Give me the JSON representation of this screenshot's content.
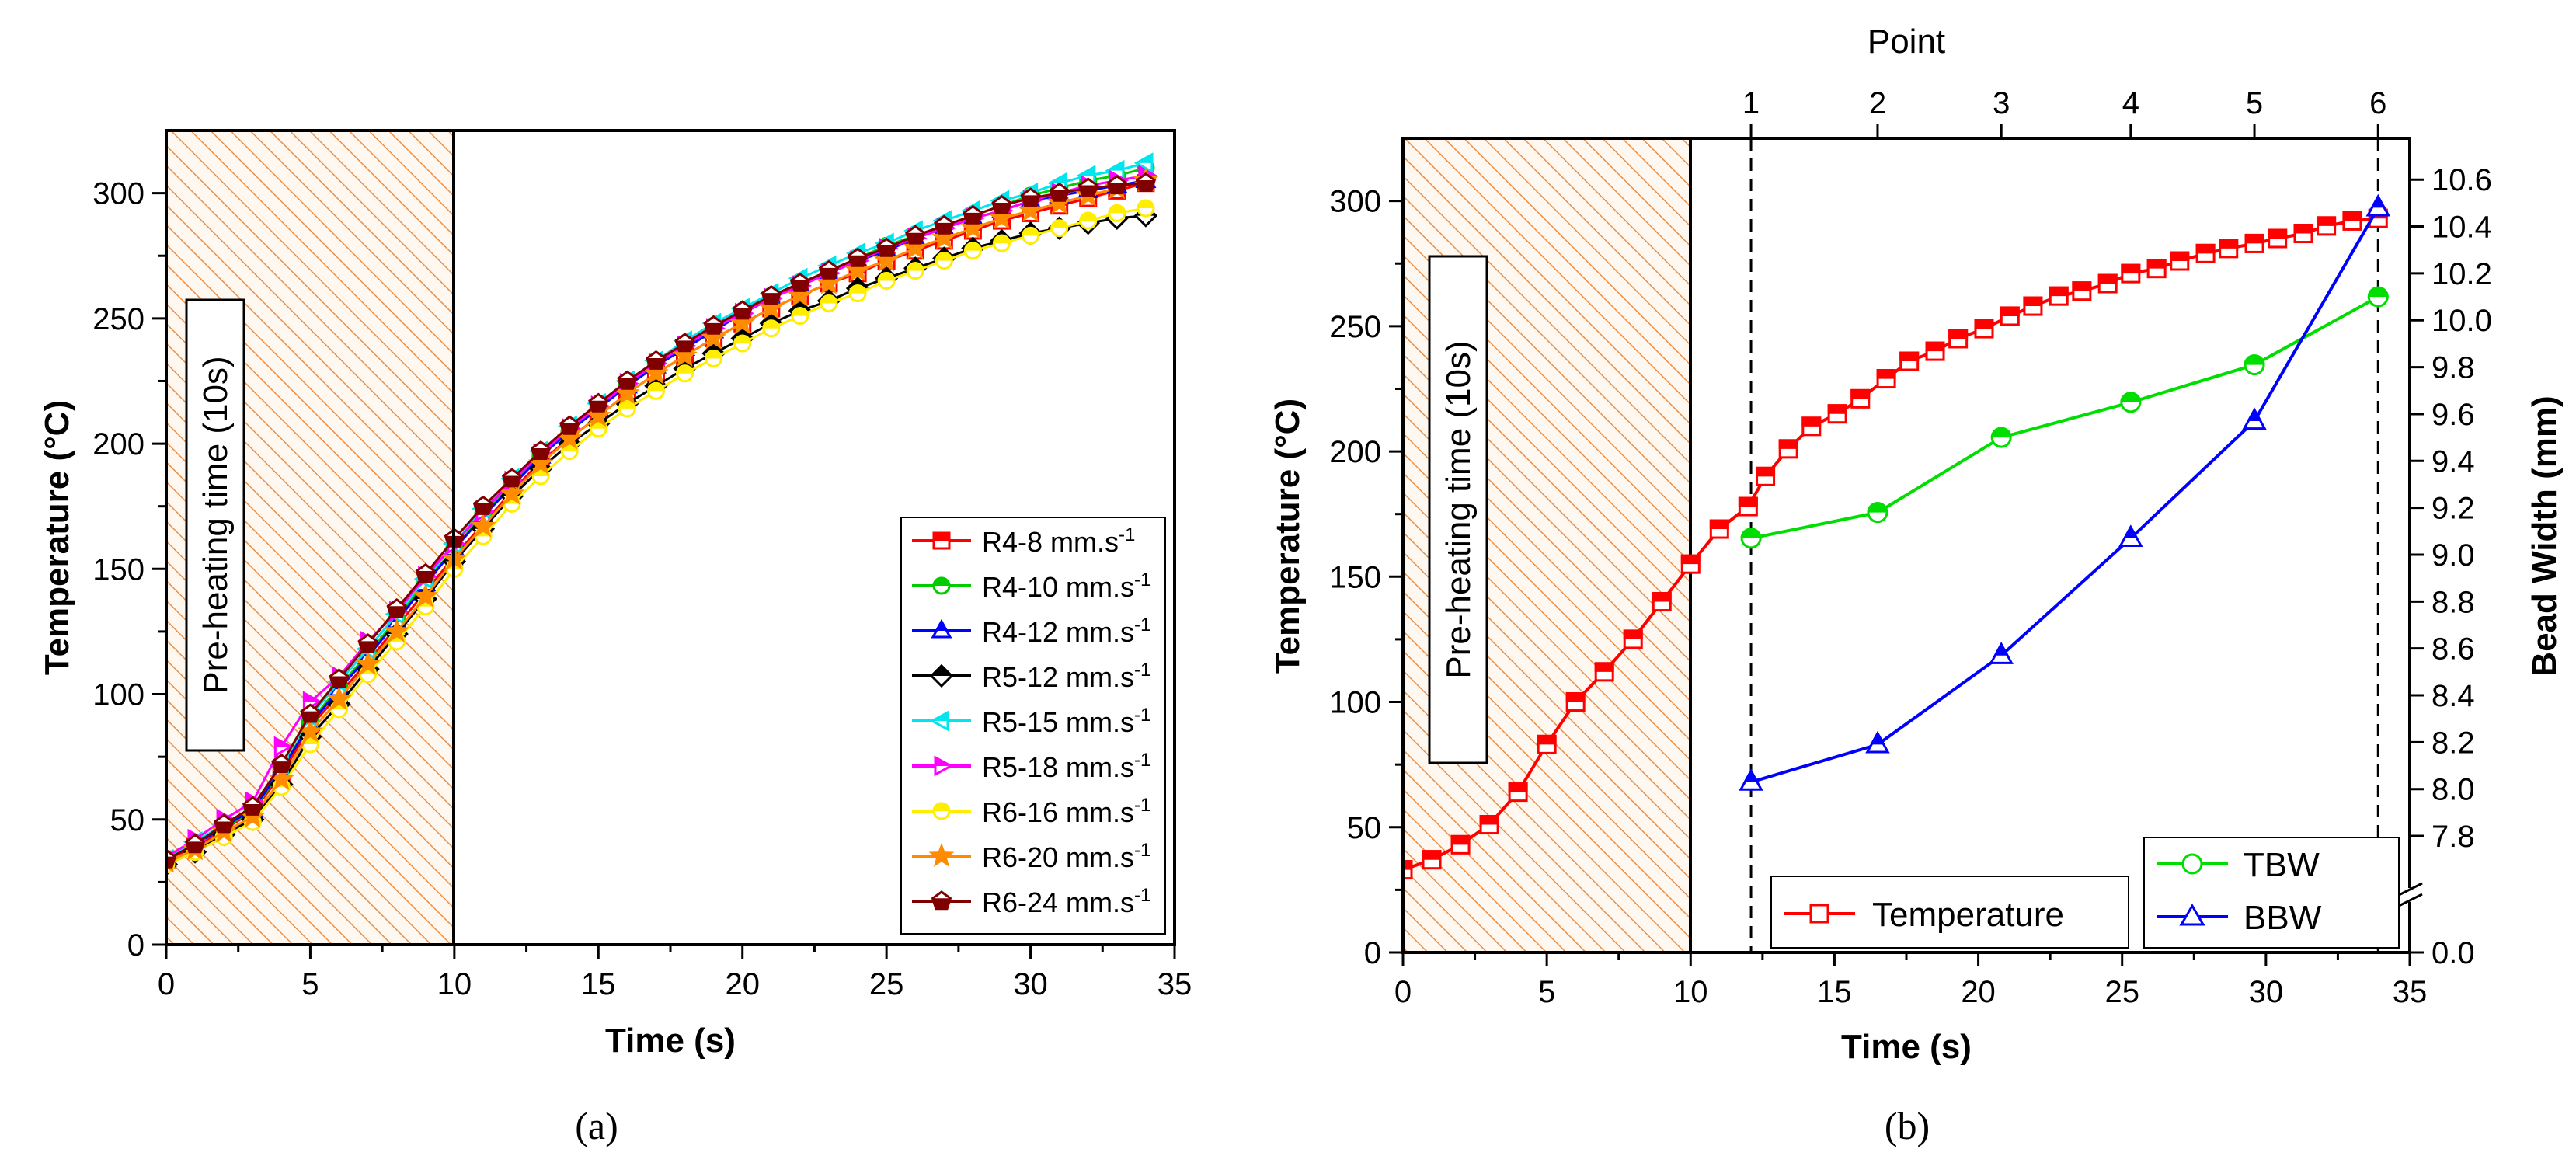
{
  "chart_data": [
    {
      "type": "line",
      "panel_caption": "(a)",
      "xlabel": "Time (s)",
      "ylabel": "Temperature (°C)",
      "xlim": [
        0,
        35
      ],
      "ylim": [
        0,
        325
      ],
      "xticks": [
        0,
        5,
        10,
        15,
        20,
        25,
        30,
        35
      ],
      "yticks": [
        0,
        50,
        100,
        150,
        200,
        250,
        300
      ],
      "grid": false,
      "legend_position": "lower-right",
      "annotation": "Pre-heating time (10s)",
      "preheat_region": [
        0,
        10
      ],
      "vline": 10,
      "x": [
        0,
        1,
        2,
        3,
        4,
        5,
        6,
        7,
        8,
        9,
        10,
        11,
        12,
        13,
        14,
        15,
        16,
        17,
        18,
        19,
        20,
        21,
        22,
        23,
        24,
        25,
        26,
        27,
        28,
        29,
        30,
        31,
        32,
        33,
        34
      ],
      "series": [
        {
          "name": "R4-8 mm.s-1",
          "label": "R4-8 mm.s",
          "unit_sup": "-1",
          "color": "#ff0000",
          "marker": "square",
          "values": [
            34,
            39,
            46,
            53,
            68,
            87,
            100,
            113,
            127,
            141,
            155,
            168,
            181,
            193,
            202,
            211,
            220,
            228,
            235,
            242,
            248,
            254,
            259,
            264,
            268,
            273,
            277,
            281,
            285,
            289,
            292,
            295,
            298,
            301,
            304
          ]
        },
        {
          "name": "R4-10 mm.s-1",
          "label": "R4-10 mm.s",
          "unit_sup": "-1",
          "color": "#00cc00",
          "marker": "circle",
          "values": [
            34,
            40,
            47,
            53,
            70,
            89,
            103,
            116,
            130,
            145,
            158,
            172,
            184,
            196,
            205,
            215,
            224,
            232,
            240,
            247,
            253,
            259,
            264,
            269,
            274,
            279,
            283,
            287,
            291,
            295,
            299,
            302,
            305,
            307,
            310
          ]
        },
        {
          "name": "R4-12 mm.s-1",
          "label": "R4-12 mm.s",
          "unit_sup": "-1",
          "color": "#0000ff",
          "marker": "triangle-up",
          "values": [
            34,
            40,
            47,
            54,
            70,
            88,
            102,
            115,
            129,
            144,
            158,
            171,
            183,
            195,
            205,
            214,
            223,
            231,
            238,
            245,
            252,
            258,
            263,
            268,
            273,
            277,
            282,
            286,
            290,
            293,
            297,
            299,
            301,
            303,
            305
          ]
        },
        {
          "name": "R5-12 mm.s-1",
          "label": "R5-12 mm.s",
          "unit_sup": "-1",
          "color": "#000000",
          "marker": "diamond",
          "values": [
            32,
            37,
            44,
            50,
            64,
            83,
            96,
            110,
            124,
            138,
            153,
            166,
            179,
            190,
            200,
            208,
            216,
            223,
            230,
            236,
            242,
            248,
            253,
            257,
            262,
            266,
            270,
            274,
            278,
            281,
            284,
            286,
            288,
            290,
            291
          ]
        },
        {
          "name": "R5-15 mm.s-1",
          "label": "R5-15 mm.s",
          "unit_sup": "-1",
          "color": "#00e5ee",
          "marker": "triangle-left",
          "values": [
            34,
            41,
            48,
            55,
            72,
            91,
            105,
            118,
            132,
            146,
            160,
            174,
            186,
            197,
            207,
            216,
            225,
            233,
            241,
            248,
            254,
            260,
            266,
            271,
            276,
            280,
            285,
            289,
            293,
            297,
            300,
            304,
            307,
            309,
            312
          ]
        },
        {
          "name": "R5-18 mm.s-1",
          "label": "R5-18 mm.s",
          "unit_sup": "-1",
          "color": "#ff00ff",
          "marker": "triangle-right",
          "values": [
            35,
            42,
            50,
            57,
            79,
            97,
            107,
            121,
            133,
            147,
            160,
            173,
            185,
            196,
            206,
            215,
            224,
            232,
            239,
            246,
            252,
            258,
            263,
            268,
            273,
            278,
            282,
            286,
            290,
            293,
            297,
            300,
            303,
            305,
            307
          ]
        },
        {
          "name": "R6-16 mm.s-1",
          "label": "R6-16 mm.s",
          "unit_sup": "-1",
          "color": "#ffee00",
          "marker": "circle",
          "values": [
            32,
            37,
            43,
            49,
            63,
            80,
            94,
            108,
            121,
            135,
            150,
            163,
            176,
            187,
            197,
            206,
            214,
            221,
            228,
            234,
            240,
            246,
            251,
            256,
            260,
            265,
            269,
            273,
            277,
            280,
            283,
            286,
            289,
            292,
            294
          ]
        },
        {
          "name": "R6-20 mm.s-1",
          "label": "R6-20 mm.s",
          "unit_sup": "-1",
          "color": "#ff8c00",
          "marker": "star",
          "values": [
            33,
            38,
            45,
            51,
            66,
            85,
            98,
            112,
            125,
            139,
            154,
            167,
            180,
            192,
            202,
            211,
            220,
            228,
            235,
            242,
            248,
            254,
            259,
            264,
            269,
            273,
            278,
            282,
            286,
            290,
            293,
            296,
            299,
            302,
            305
          ]
        },
        {
          "name": "R6-24 mm.s-1",
          "label": "R6-24 mm.s",
          "unit_sup": "-1",
          "color": "#800000",
          "marker": "pentagon",
          "values": [
            34,
            40,
            48,
            55,
            72,
            92,
            106,
            120,
            134,
            148,
            162,
            175,
            186,
            197,
            207,
            216,
            225,
            233,
            240,
            247,
            253,
            259,
            264,
            269,
            274,
            278,
            283,
            287,
            291,
            295,
            298,
            300,
            302,
            303,
            304
          ]
        }
      ]
    },
    {
      "type": "line",
      "panel_caption": "(b)",
      "xlabel": "Time (s)",
      "ylabel": "Temperature (°C)",
      "y2label": "Bead Width (mm)",
      "x2label": "Point",
      "xlim": [
        0,
        35
      ],
      "ylim": [
        0,
        325
      ],
      "xticks": [
        0,
        5,
        10,
        15,
        20,
        25,
        30,
        35
      ],
      "yticks": [
        0,
        50,
        100,
        150,
        200,
        250,
        300
      ],
      "y2_ticks": [
        "0.0",
        "7.8",
        "8.0",
        "8.2",
        "8.4",
        "8.6",
        "8.8",
        "9.0",
        "9.2",
        "9.4",
        "9.6",
        "9.8",
        "10.0",
        "10.2",
        "10.4",
        "10.6"
      ],
      "y2_break": "7.8",
      "x2_ticks": [
        {
          "label": "1",
          "x": 12.1
        },
        {
          "label": "2",
          "x": 16.5
        },
        {
          "label": "3",
          "x": 20.8
        },
        {
          "label": "4",
          "x": 25.3
        },
        {
          "label": "5",
          "x": 29.6
        },
        {
          "label": "6",
          "x": 33.9
        }
      ],
      "dashed_vlines": [
        12.1,
        33.9
      ],
      "grid": false,
      "annotation": "Pre-heating time (10s)",
      "preheat_region": [
        0,
        10
      ],
      "vline": 10,
      "series": [
        {
          "name": "Temperature",
          "color": "#ff0000",
          "marker": "square",
          "axis": "left",
          "x": [
            0,
            1,
            2,
            3,
            4,
            5,
            6,
            7,
            8,
            9,
            10,
            11,
            12,
            12.6,
            13.4,
            14.2,
            15.1,
            15.9,
            16.8,
            17.6,
            18.5,
            19.3,
            20.2,
            21.1,
            21.9,
            22.8,
            23.6,
            24.5,
            25.3,
            26.2,
            27.0,
            27.9,
            28.7,
            29.6,
            30.4,
            31.3,
            32.1,
            33.0,
            33.9
          ],
          "values": [
            33,
            37,
            43,
            51,
            64,
            83,
            100,
            112,
            125,
            140,
            155,
            169,
            178,
            190,
            201,
            210,
            215,
            221,
            229,
            236,
            240,
            245,
            249,
            254,
            258,
            262,
            264,
            267,
            271,
            273,
            276,
            279,
            281,
            283,
            285,
            287,
            290,
            292,
            293
          ]
        },
        {
          "name": "TBW",
          "color": "#00dd00",
          "marker": "circle",
          "axis": "right",
          "x": [
            12.1,
            16.5,
            20.8,
            25.3,
            29.6,
            33.9
          ],
          "values": [
            9.07,
            9.18,
            9.5,
            9.65,
            9.81,
            10.1
          ]
        },
        {
          "name": "BBW",
          "color": "#0000ff",
          "marker": "triangle-up",
          "axis": "right",
          "x": [
            12.1,
            16.5,
            20.8,
            25.3,
            29.6,
            33.9
          ],
          "values": [
            8.03,
            8.19,
            8.57,
            9.07,
            9.57,
            10.48
          ]
        }
      ],
      "legend": [
        {
          "label": "Temperature",
          "series": "Temperature"
        },
        {
          "label": "TBW",
          "series": "TBW"
        },
        {
          "label": "BBW",
          "series": "BBW"
        }
      ]
    }
  ]
}
